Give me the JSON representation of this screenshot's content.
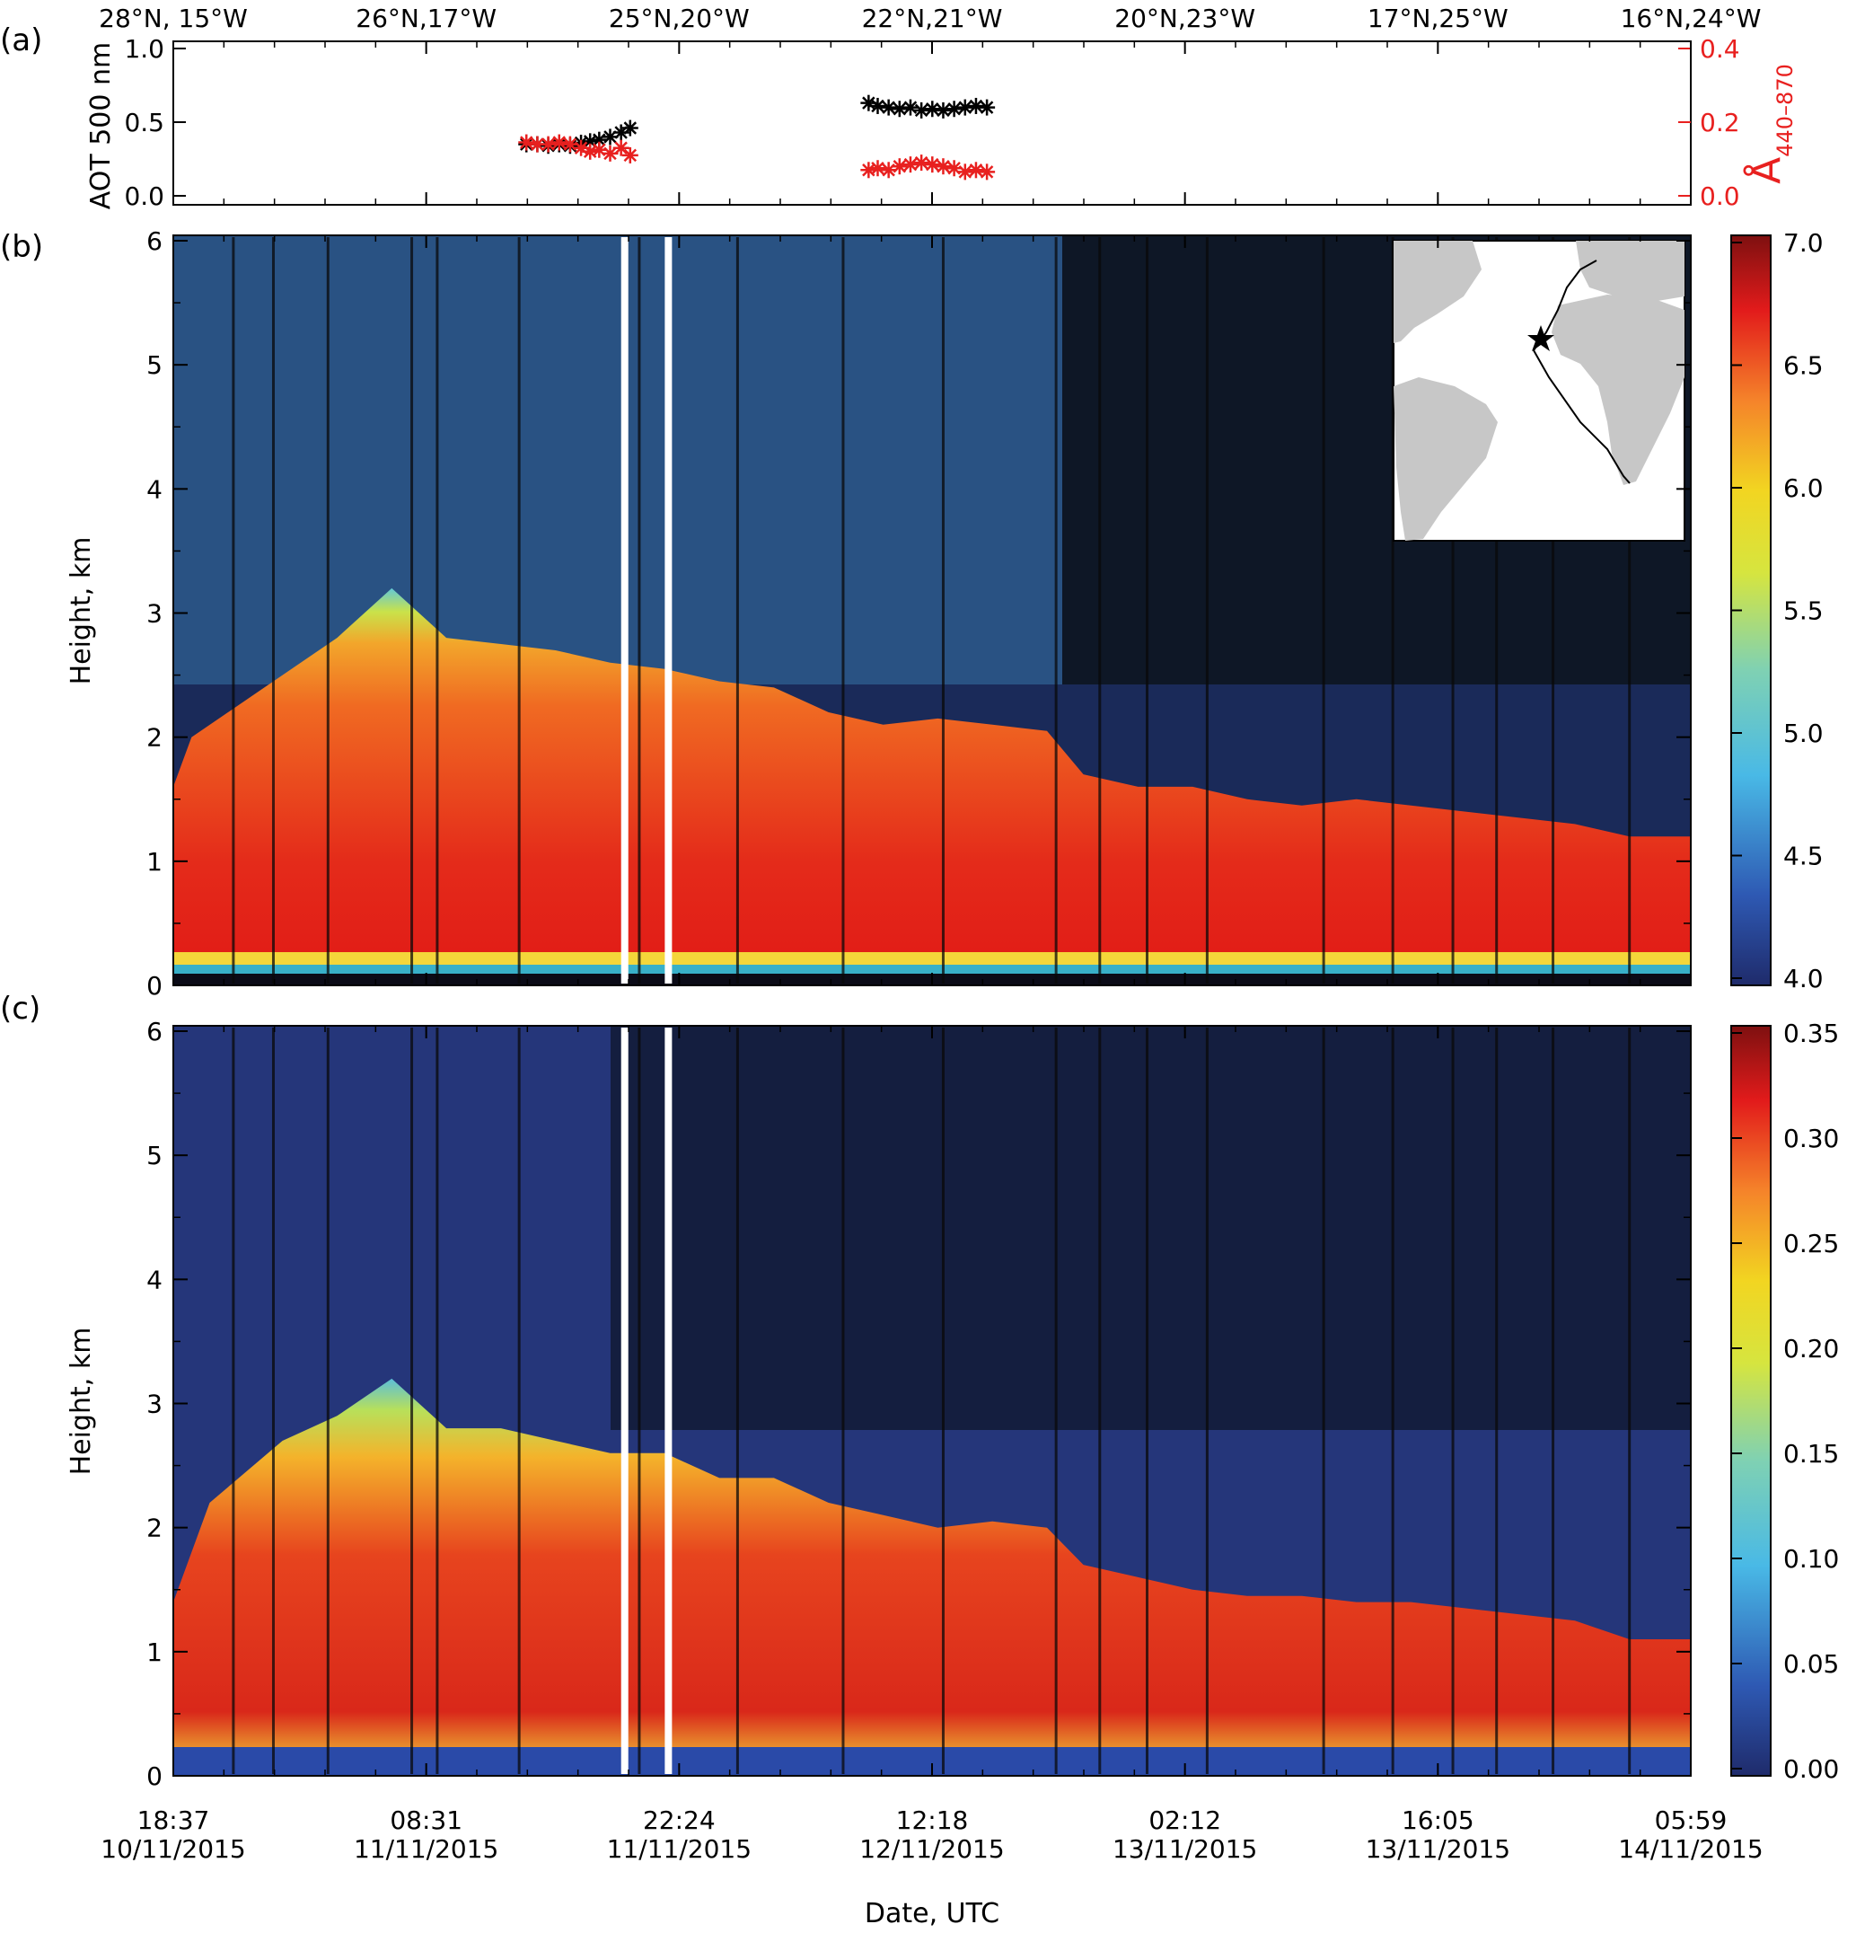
{
  "figure": {
    "panel_labels": [
      "(a)",
      "(b)",
      "(c)"
    ],
    "xlabel": "Date, UTC",
    "top_axis_labels": [
      "28°N, 15°W",
      "26°N,17°W",
      "25°N,20°W",
      "22°N,21°W",
      "20°N,23°W",
      "17°N,25°W",
      "16°N,24°W"
    ],
    "x_ticks": [
      {
        "time": "18:37",
        "date": "10/11/2015"
      },
      {
        "time": "08:31",
        "date": "11/11/2015"
      },
      {
        "time": "22:24",
        "date": "11/11/2015"
      },
      {
        "time": "12:18",
        "date": "12/11/2015"
      },
      {
        "time": "02:12",
        "date": "13/11/2015"
      },
      {
        "time": "16:05",
        "date": "13/11/2015"
      },
      {
        "time": "05:59",
        "date": "14/11/2015"
      }
    ],
    "colors": {
      "aot": "#000000",
      "angstrom": "#e8201f"
    }
  },
  "chart_data": [
    {
      "panel": "(a)",
      "type": "scatter",
      "x_unit": "hours since 18:37 10/11/2015",
      "xlim": [
        0,
        83.37
      ],
      "ylabel": "AOT 500 nm",
      "ylim": [
        0,
        1.0
      ],
      "yticks": [
        "0.0",
        "0.5",
        "1.0"
      ],
      "y2label_main": "Å",
      "y2label_sub": "440–870",
      "y2lim": [
        0,
        0.4
      ],
      "y2ticks": [
        "0.0",
        "0.2",
        "0.4"
      ],
      "marker": "asterisk",
      "series": [
        {
          "axis": "left",
          "color": "#000000",
          "points": [
            [
              19.4,
              0.35
            ],
            [
              20.0,
              0.35
            ],
            [
              20.6,
              0.34
            ],
            [
              21.2,
              0.35
            ],
            [
              21.8,
              0.34
            ],
            [
              22.4,
              0.36
            ],
            [
              22.9,
              0.37
            ],
            [
              23.4,
              0.38
            ],
            [
              24.0,
              0.4
            ],
            [
              24.6,
              0.43
            ],
            [
              25.1,
              0.46
            ],
            [
              38.2,
              0.63
            ],
            [
              38.7,
              0.61
            ],
            [
              39.3,
              0.6
            ],
            [
              39.9,
              0.59
            ],
            [
              40.5,
              0.6
            ],
            [
              41.1,
              0.58
            ],
            [
              41.7,
              0.59
            ],
            [
              42.3,
              0.58
            ],
            [
              42.9,
              0.59
            ],
            [
              43.5,
              0.6
            ],
            [
              44.1,
              0.61
            ],
            [
              44.7,
              0.6
            ]
          ]
        },
        {
          "axis": "right",
          "color": "#e8201f",
          "points": [
            [
              19.4,
              0.145
            ],
            [
              20.0,
              0.14
            ],
            [
              20.6,
              0.14
            ],
            [
              21.2,
              0.145
            ],
            [
              21.8,
              0.14
            ],
            [
              22.4,
              0.13
            ],
            [
              22.9,
              0.12
            ],
            [
              23.4,
              0.125
            ],
            [
              24.0,
              0.115
            ],
            [
              24.6,
              0.13
            ],
            [
              25.1,
              0.11
            ],
            [
              38.2,
              0.07
            ],
            [
              38.7,
              0.075
            ],
            [
              39.3,
              0.07
            ],
            [
              39.9,
              0.08
            ],
            [
              40.5,
              0.085
            ],
            [
              41.1,
              0.09
            ],
            [
              41.7,
              0.085
            ],
            [
              42.3,
              0.08
            ],
            [
              42.9,
              0.075
            ],
            [
              43.5,
              0.065
            ],
            [
              44.1,
              0.07
            ],
            [
              44.7,
              0.065
            ]
          ]
        }
      ]
    },
    {
      "panel": "(b)",
      "type": "heatmap",
      "ylabel": "Height, km",
      "ylim": [
        0,
        6
      ],
      "yticks": [
        "0",
        "1",
        "2",
        "3",
        "4",
        "5",
        "6"
      ],
      "colorbar_ticks": [
        "4.0",
        "4.5",
        "5.0",
        "5.5",
        "6.0",
        "6.5",
        "7.0"
      ],
      "colorbar_range": [
        4.0,
        7.0
      ],
      "colormap": "rainbow",
      "inset": "map-with-ship-track",
      "layer_top_km": [
        [
          0,
          1.6
        ],
        [
          1,
          2.0
        ],
        [
          5,
          2.4
        ],
        [
          9,
          2.8
        ],
        [
          12,
          3.2
        ],
        [
          15,
          2.8
        ],
        [
          18,
          2.75
        ],
        [
          21,
          2.7
        ],
        [
          24,
          2.6
        ],
        [
          27,
          2.55
        ],
        [
          30,
          2.45
        ],
        [
          33,
          2.4
        ],
        [
          36,
          2.2
        ],
        [
          39,
          2.1
        ],
        [
          42,
          2.15
        ],
        [
          45,
          2.1
        ],
        [
          48,
          2.05
        ],
        [
          50,
          1.7
        ],
        [
          53,
          1.6
        ],
        [
          56,
          1.6
        ],
        [
          59,
          1.5
        ],
        [
          62,
          1.45
        ],
        [
          65,
          1.5
        ],
        [
          68,
          1.45
        ],
        [
          71,
          1.4
        ],
        [
          74,
          1.35
        ],
        [
          77,
          1.3
        ],
        [
          80,
          1.2
        ],
        [
          83.37,
          1.2
        ]
      ],
      "gaps_hours": [
        24.8,
        27.2
      ]
    },
    {
      "panel": "(c)",
      "type": "heatmap",
      "ylabel": "Height, km",
      "ylim": [
        0,
        6
      ],
      "yticks": [
        "0",
        "1",
        "2",
        "3",
        "4",
        "5",
        "6"
      ],
      "colorbar_ticks": [
        "0.00",
        "0.05",
        "0.10",
        "0.15",
        "0.20",
        "0.25",
        "0.30",
        "0.35"
      ],
      "colorbar_range": [
        0.0,
        0.35
      ],
      "colormap": "rainbow",
      "layer_top_km": [
        [
          0,
          1.4
        ],
        [
          2,
          2.2
        ],
        [
          6,
          2.7
        ],
        [
          9,
          2.9
        ],
        [
          12,
          3.2
        ],
        [
          15,
          2.8
        ],
        [
          18,
          2.8
        ],
        [
          21,
          2.7
        ],
        [
          24,
          2.6
        ],
        [
          27,
          2.6
        ],
        [
          30,
          2.4
        ],
        [
          33,
          2.4
        ],
        [
          36,
          2.2
        ],
        [
          39,
          2.1
        ],
        [
          42,
          2.0
        ],
        [
          45,
          2.05
        ],
        [
          48,
          2.0
        ],
        [
          50,
          1.7
        ],
        [
          53,
          1.6
        ],
        [
          56,
          1.5
        ],
        [
          59,
          1.45
        ],
        [
          62,
          1.45
        ],
        [
          65,
          1.4
        ],
        [
          68,
          1.4
        ],
        [
          71,
          1.35
        ],
        [
          74,
          1.3
        ],
        [
          77,
          1.25
        ],
        [
          80,
          1.1
        ],
        [
          83.37,
          1.1
        ]
      ],
      "gaps_hours": [
        24.8,
        27.2
      ]
    }
  ]
}
